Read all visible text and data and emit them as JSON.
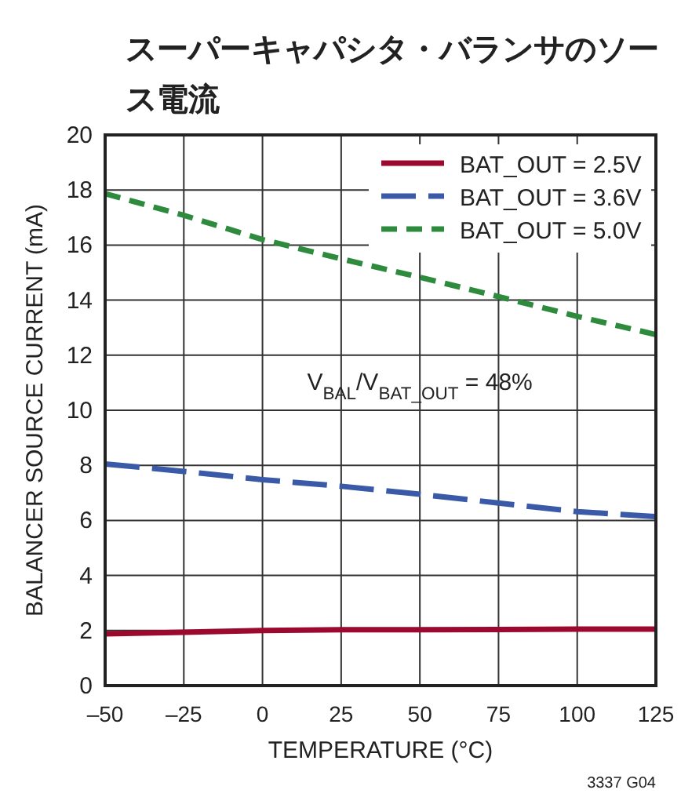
{
  "chart_data": {
    "type": "line",
    "title": "スーパーキャパシタ・バランサのソース電流",
    "xlabel": "TEMPERATURE (°C)",
    "ylabel": "BALANCER SOURCE CURRENT (mA)",
    "x": [
      -50,
      -25,
      0,
      25,
      50,
      75,
      100,
      125
    ],
    "xlim": [
      -50,
      125
    ],
    "xticks": [
      {
        "value": -50,
        "label": "–50"
      },
      {
        "value": -25,
        "label": "–25"
      },
      0,
      25,
      50,
      75,
      100,
      125
    ],
    "ylim": [
      0,
      20
    ],
    "yticks": [
      0,
      2,
      4,
      6,
      8,
      10,
      12,
      14,
      16,
      18,
      20
    ],
    "grid": true,
    "legend": "top right",
    "series": [
      {
        "name": "BAT_OUT = 2.5V",
        "color": "#9b0a2e",
        "line_style": "solid",
        "values": [
          1.88,
          1.94,
          2.0,
          2.03,
          2.03,
          2.04,
          2.05,
          2.05
        ]
      },
      {
        "name": "BAT_OUT = 3.6V",
        "color": "#3a5aa8",
        "line_style": "dashed",
        "values": [
          8.05,
          7.78,
          7.48,
          7.24,
          6.95,
          6.63,
          6.32,
          6.14
        ]
      },
      {
        "name": "BAT_OUT = 5.0V",
        "color": "#2e8b3e",
        "line_style": "dashed",
        "values": [
          17.87,
          17.08,
          16.2,
          15.5,
          14.83,
          14.13,
          13.41,
          12.75
        ]
      }
    ],
    "annotations": [
      "V$_{BAL}$/V$_{BAT_OUT}$ = 48%",
      "3337 G04"
    ]
  }
}
